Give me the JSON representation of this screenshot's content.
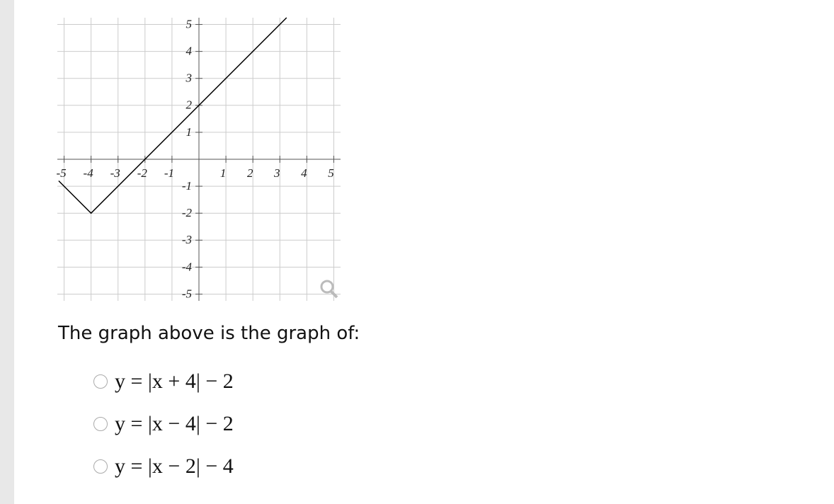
{
  "chart_data": {
    "type": "line",
    "x": [
      -5.2,
      -4,
      3.25
    ],
    "series": [
      {
        "color": "#000000",
        "values": [
          -0.8,
          -2,
          5.25
        ]
      }
    ],
    "xlim": [
      -5.25,
      5.25
    ],
    "ylim": [
      -5.25,
      5.25
    ],
    "xticks": [
      -5,
      -4,
      -3,
      -2,
      -1,
      1,
      2,
      3,
      4,
      5
    ],
    "yticks": [
      -5,
      -4,
      -3,
      -2,
      -1,
      1,
      2,
      3,
      4,
      5
    ],
    "grid": true
  },
  "question": "The graph above is the graph of:",
  "options": [
    "y = |x + 4| − 2",
    "y = |x − 4| − 2",
    "y = |x − 2| − 4"
  ]
}
